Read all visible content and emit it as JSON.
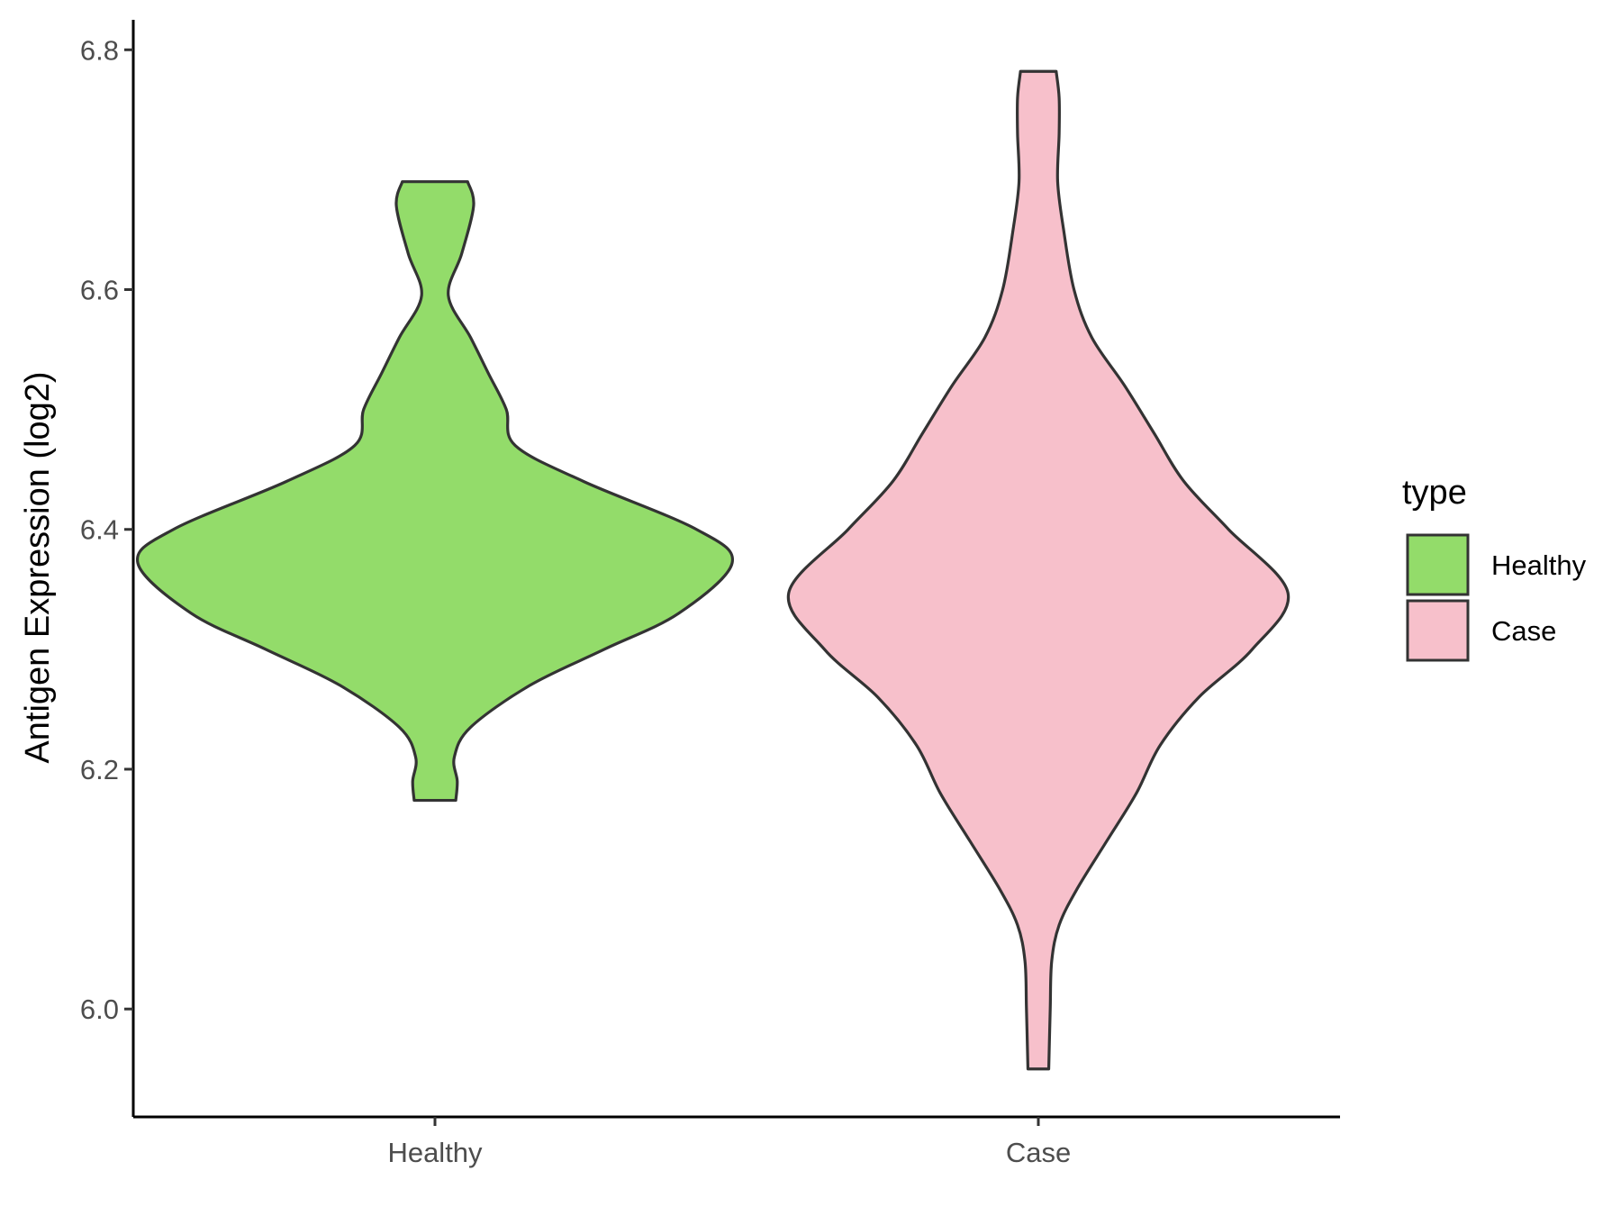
{
  "chart_data": {
    "type": "violin",
    "ylabel": "Antigen Expression (log2)",
    "xlabel": "",
    "categories": [
      "Healthy",
      "Case"
    ],
    "ylim": [
      5.91,
      6.825
    ],
    "y_ticks": [
      "6.0",
      "6.2",
      "6.4",
      "6.6",
      "6.8"
    ],
    "grid": false,
    "legend": {
      "title": "type",
      "position": "right",
      "entries": [
        "Healthy",
        "Case"
      ]
    },
    "series": [
      {
        "category": "Healthy",
        "fill": "#93dc6a",
        "min": 6.174,
        "max": 6.69,
        "density_profile": [
          [
            6.174,
            0.07
          ],
          [
            6.19,
            0.075
          ],
          [
            6.21,
            0.065
          ],
          [
            6.235,
            0.12
          ],
          [
            6.27,
            0.32
          ],
          [
            6.3,
            0.57
          ],
          [
            6.33,
            0.82
          ],
          [
            6.372,
            1.0
          ],
          [
            6.4,
            0.88
          ],
          [
            6.44,
            0.5
          ],
          [
            6.47,
            0.27
          ],
          [
            6.5,
            0.24
          ],
          [
            6.53,
            0.18
          ],
          [
            6.56,
            0.12
          ],
          [
            6.595,
            0.045
          ],
          [
            6.63,
            0.09
          ],
          [
            6.67,
            0.13
          ],
          [
            6.69,
            0.11
          ]
        ]
      },
      {
        "category": "Case",
        "fill": "#f7c0cb",
        "min": 5.95,
        "max": 6.782,
        "density_profile": [
          [
            5.95,
            0.035
          ],
          [
            6.0,
            0.04
          ],
          [
            6.04,
            0.045
          ],
          [
            6.07,
            0.07
          ],
          [
            6.1,
            0.13
          ],
          [
            6.14,
            0.23
          ],
          [
            6.18,
            0.33
          ],
          [
            6.22,
            0.41
          ],
          [
            6.26,
            0.54
          ],
          [
            6.3,
            0.72
          ],
          [
            6.347,
            0.84
          ],
          [
            6.4,
            0.64
          ],
          [
            6.44,
            0.49
          ],
          [
            6.48,
            0.39
          ],
          [
            6.52,
            0.29
          ],
          [
            6.56,
            0.18
          ],
          [
            6.6,
            0.12
          ],
          [
            6.65,
            0.085
          ],
          [
            6.69,
            0.065
          ],
          [
            6.73,
            0.07
          ],
          [
            6.76,
            0.07
          ],
          [
            6.782,
            0.06
          ]
        ]
      }
    ],
    "colors": {
      "outline": "#333333",
      "axis": "#000000",
      "tick_text": "#4d4d4d"
    }
  }
}
